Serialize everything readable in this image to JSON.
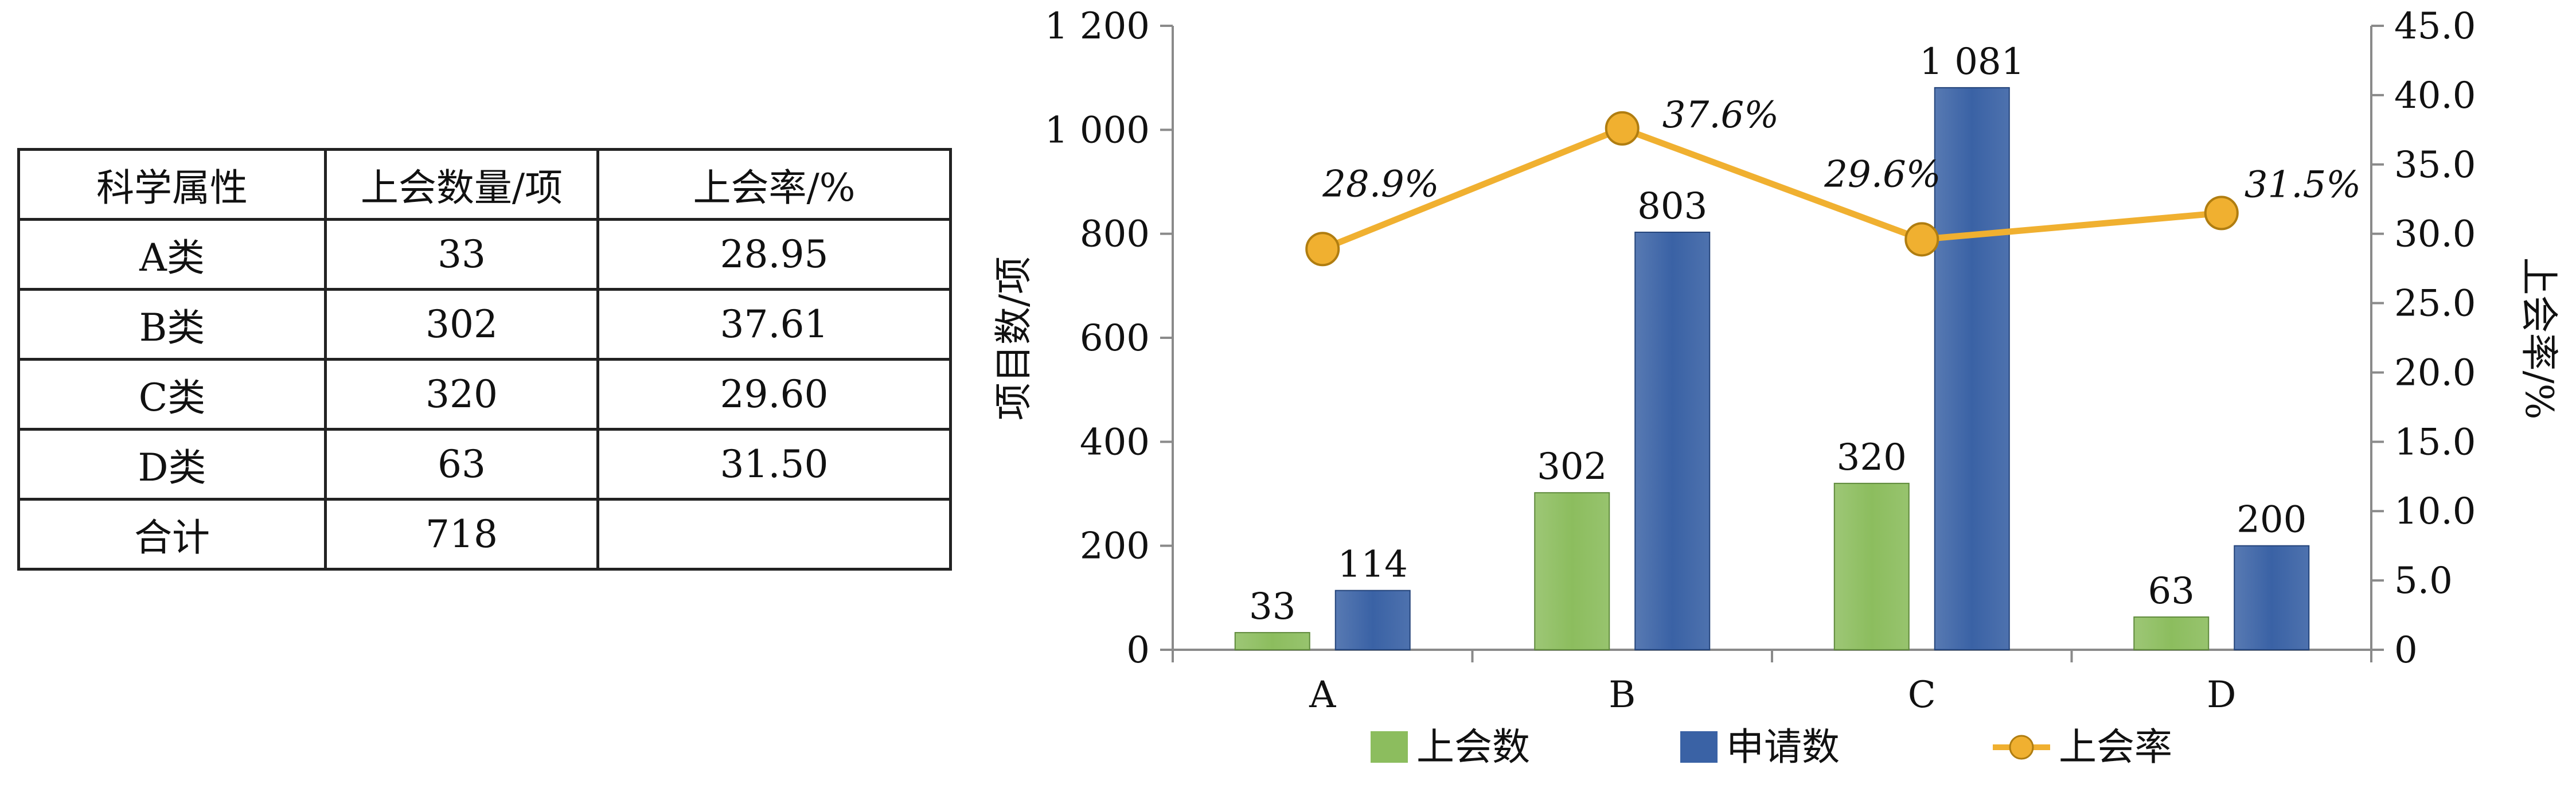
{
  "table": {
    "headers": [
      "科学属性",
      "上会数量/项",
      "上会率/%"
    ],
    "rows": [
      [
        "A类",
        "33",
        "28.95"
      ],
      [
        "B类",
        "302",
        "37.61"
      ],
      [
        "C类",
        "320",
        "29.60"
      ],
      [
        "D类",
        "63",
        "31.50"
      ],
      [
        "合计",
        "718",
        ""
      ]
    ]
  },
  "chart_data": {
    "type": "bar",
    "categories": [
      "A",
      "B",
      "C",
      "D"
    ],
    "series": [
      {
        "name": "上会数",
        "type": "bar",
        "values": [
          33,
          302,
          320,
          63
        ],
        "labels": [
          "33",
          "302",
          "320",
          "63"
        ],
        "color": "#8cbd5e"
      },
      {
        "name": "申请数",
        "type": "bar",
        "values": [
          114,
          803,
          1081,
          200
        ],
        "labels": [
          "114",
          "803",
          "1 081",
          "200"
        ],
        "color": "#3a62a5"
      },
      {
        "name": "上会率",
        "type": "line",
        "axis": "right",
        "values": [
          28.9,
          37.6,
          29.6,
          31.5
        ],
        "labels": [
          "28.9%",
          "37.6%",
          "29.6%",
          "31.5%"
        ],
        "color": "#f0b030"
      }
    ],
    "ylabel": "项目数/项",
    "y2label": "上会率/%",
    "ylim": [
      0,
      1200
    ],
    "y2lim": [
      0,
      45
    ],
    "yticks": [
      "0",
      "200",
      "400",
      "600",
      "800",
      "1 000",
      "1 200"
    ],
    "y2ticks": [
      "0",
      "5.0",
      "10.0",
      "15.0",
      "20.0",
      "25.0",
      "30.0",
      "35.0",
      "40.0",
      "45.0"
    ],
    "grid": false,
    "legend": "bottom"
  }
}
